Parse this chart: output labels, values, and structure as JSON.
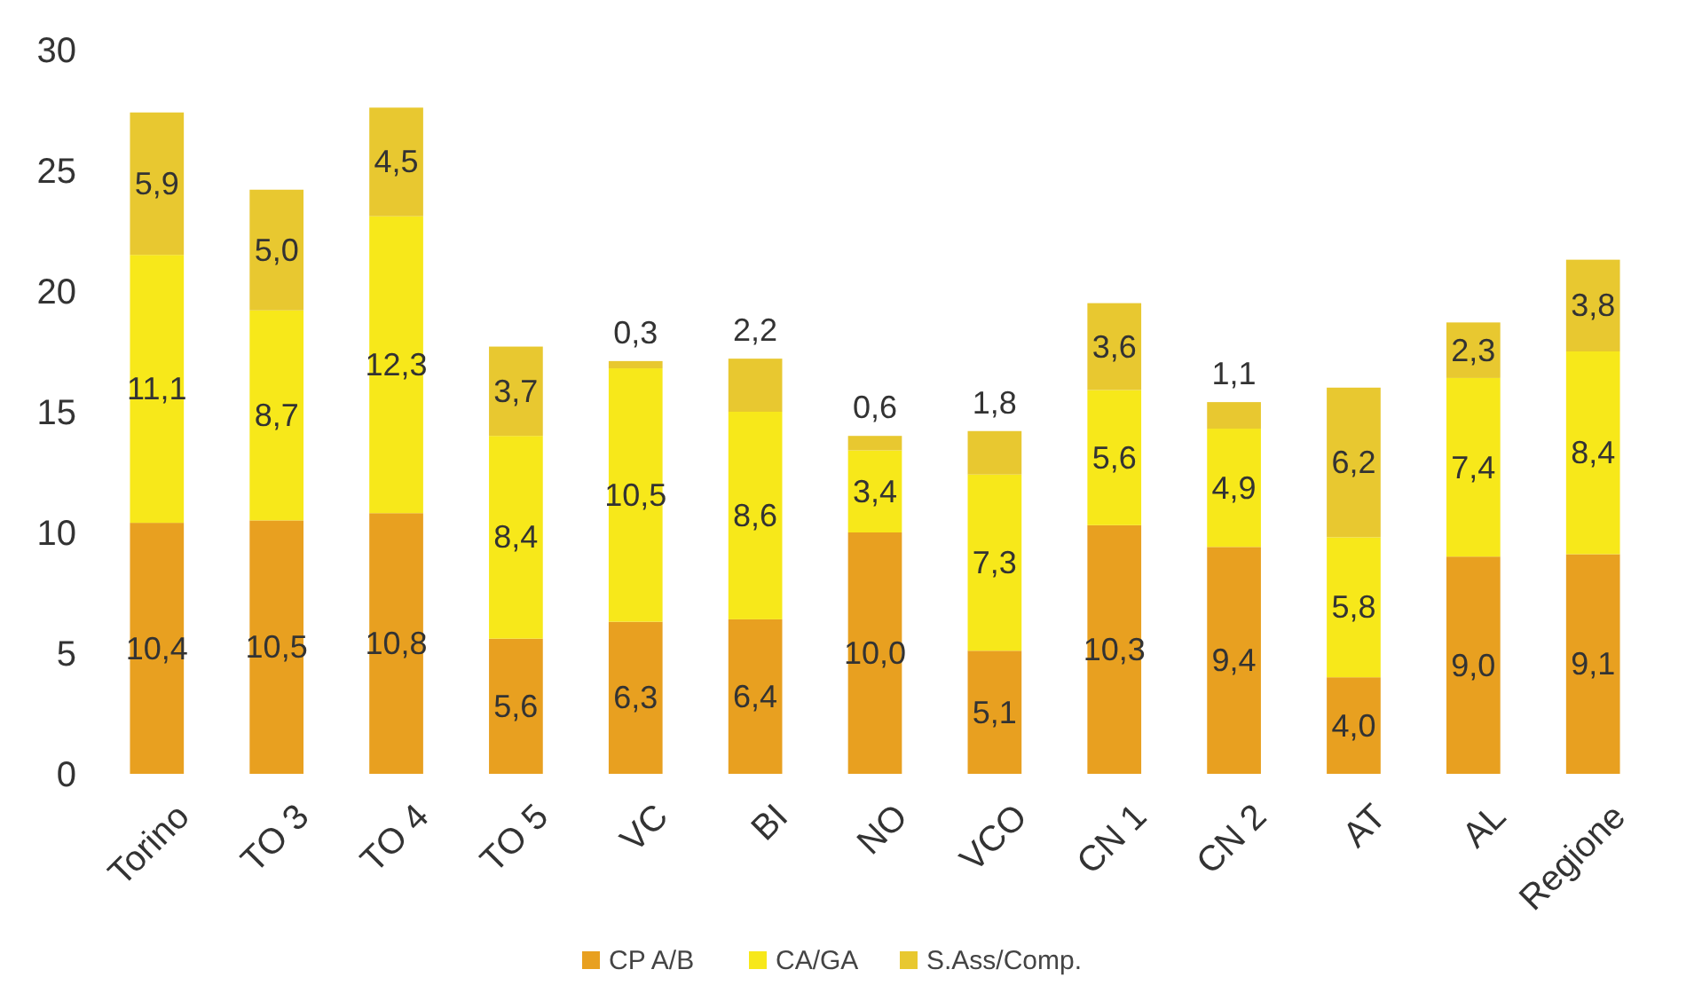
{
  "chart_data": {
    "type": "bar",
    "stacked": true,
    "categories": [
      "Torino",
      "TO 3",
      "TO 4",
      "TO 5",
      "VC",
      "BI",
      "NO",
      "VCO",
      "CN 1",
      "CN 2",
      "AT",
      "AL",
      "Regione"
    ],
    "series": [
      {
        "name": "CP A/B",
        "color": "#e8a020",
        "values": [
          10.4,
          10.5,
          10.8,
          5.6,
          6.3,
          6.4,
          10.0,
          5.1,
          10.3,
          9.4,
          4.0,
          9.0,
          9.1
        ],
        "value_labels": [
          "10,4",
          "10,5",
          "10,8",
          "5,6",
          "6,3",
          "6,4",
          "10,0",
          "5,1",
          "10,3",
          "9,4",
          "4,0",
          "9,0",
          "9,1"
        ]
      },
      {
        "name": "CA/GA",
        "color": "#f7e81a",
        "values": [
          11.1,
          8.7,
          12.3,
          8.4,
          10.5,
          8.6,
          3.4,
          7.3,
          5.6,
          4.9,
          5.8,
          7.4,
          8.4
        ],
        "value_labels": [
          "11,1",
          "8,7",
          "12,3",
          "8,4",
          "10,5",
          "8,6",
          "3,4",
          "7,3",
          "5,6",
          "4,9",
          "5,8",
          "7,4",
          "8,4"
        ]
      },
      {
        "name": "S.Ass/Comp.",
        "color": "#e8c830",
        "values": [
          5.9,
          5.0,
          4.5,
          3.7,
          0.3,
          2.2,
          0.6,
          1.8,
          3.6,
          1.1,
          6.2,
          2.3,
          3.8
        ],
        "value_labels": [
          "5,9",
          "5,0",
          "4,5",
          "3,7",
          "0,3",
          "2,2",
          "0,6",
          "1,8",
          "3,6",
          "1,1",
          "6,2",
          "2,3",
          "3,8"
        ]
      }
    ],
    "ylim": [
      0,
      30
    ],
    "yticks": [
      0,
      5,
      10,
      15,
      20,
      25,
      30
    ],
    "legend": "bottom"
  }
}
